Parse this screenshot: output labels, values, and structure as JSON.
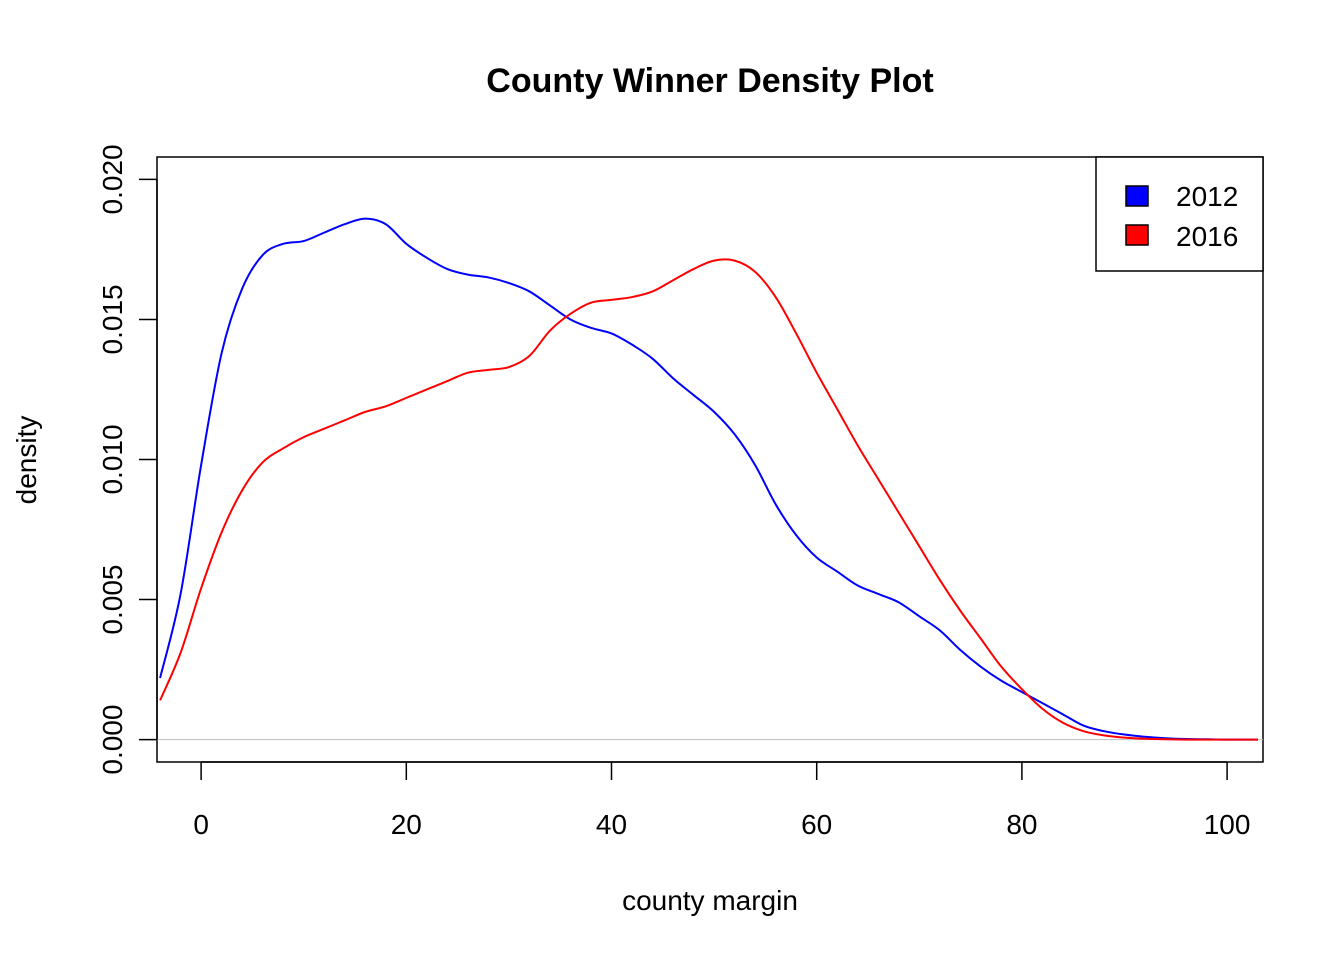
{
  "chart_data": {
    "type": "line",
    "title": "County Winner Density Plot",
    "xlabel": "county margin",
    "ylabel": "density",
    "xlim": [
      -4.3,
      103.5
    ],
    "ylim": [
      -0.0008,
      0.0208
    ],
    "xticks": [
      "0",
      "20",
      "40",
      "60",
      "80",
      "100"
    ],
    "xtick_values": [
      0,
      20,
      40,
      60,
      80,
      100
    ],
    "yticks": [
      "0.000",
      "0.005",
      "0.010",
      "0.015",
      "0.020"
    ],
    "ytick_values": [
      0,
      0.005,
      0.01,
      0.015,
      0.02
    ],
    "grid": false,
    "baseline": 0,
    "legend_position": "top-right",
    "series": [
      {
        "name": "2012",
        "color": "#0000ff",
        "x": [
          -4,
          -2,
          0,
          2,
          4,
          6,
          8,
          10,
          12,
          14,
          16,
          18,
          20,
          22,
          24,
          26,
          28,
          30,
          32,
          34,
          36,
          38,
          40,
          42,
          44,
          46,
          48,
          50,
          52,
          54,
          56,
          58,
          60,
          62,
          64,
          66,
          68,
          70,
          72,
          74,
          76,
          78,
          80,
          82,
          84,
          86,
          88,
          90,
          92,
          94,
          96,
          98,
          100,
          103
        ],
        "y": [
          0.0022,
          0.0052,
          0.0098,
          0.0138,
          0.0161,
          0.0173,
          0.0177,
          0.0178,
          0.0181,
          0.0184,
          0.0186,
          0.0184,
          0.0177,
          0.0172,
          0.0168,
          0.0166,
          0.0165,
          0.0163,
          0.016,
          0.0155,
          0.015,
          0.0147,
          0.0145,
          0.0141,
          0.0136,
          0.0129,
          0.0123,
          0.0117,
          0.0109,
          0.0098,
          0.0084,
          0.0073,
          0.0065,
          0.006,
          0.0055,
          0.0052,
          0.0049,
          0.0044,
          0.0039,
          0.0032,
          0.0026,
          0.0021,
          0.0017,
          0.0013,
          0.0009,
          0.0005,
          0.0003,
          0.00018,
          0.0001,
          5e-05,
          2e-05,
          1e-05,
          0.0,
          0.0
        ]
      },
      {
        "name": "2016",
        "color": "#ff0000",
        "x": [
          -4,
          -2,
          0,
          2,
          4,
          6,
          8,
          10,
          12,
          14,
          16,
          18,
          20,
          22,
          24,
          26,
          28,
          30,
          32,
          34,
          36,
          38,
          40,
          42,
          44,
          46,
          48,
          50,
          52,
          54,
          56,
          58,
          60,
          62,
          64,
          66,
          68,
          70,
          72,
          74,
          76,
          78,
          80,
          82,
          84,
          86,
          88,
          90,
          92,
          94,
          96,
          98,
          100,
          103
        ],
        "y": [
          0.0014,
          0.0031,
          0.0054,
          0.0074,
          0.0089,
          0.0099,
          0.0104,
          0.0108,
          0.0111,
          0.0114,
          0.0117,
          0.0119,
          0.0122,
          0.0125,
          0.0128,
          0.0131,
          0.0132,
          0.0133,
          0.0137,
          0.0146,
          0.0152,
          0.0156,
          0.0157,
          0.0158,
          0.016,
          0.0164,
          0.0168,
          0.0171,
          0.0171,
          0.0167,
          0.0158,
          0.0145,
          0.0131,
          0.0118,
          0.0105,
          0.0093,
          0.0081,
          0.0069,
          0.0057,
          0.0046,
          0.0036,
          0.0026,
          0.0018,
          0.0011,
          0.0006,
          0.0003,
          0.00015,
          7e-05,
          3e-05,
          1e-05,
          0.0,
          0.0,
          0.0,
          0.0
        ]
      }
    ]
  }
}
